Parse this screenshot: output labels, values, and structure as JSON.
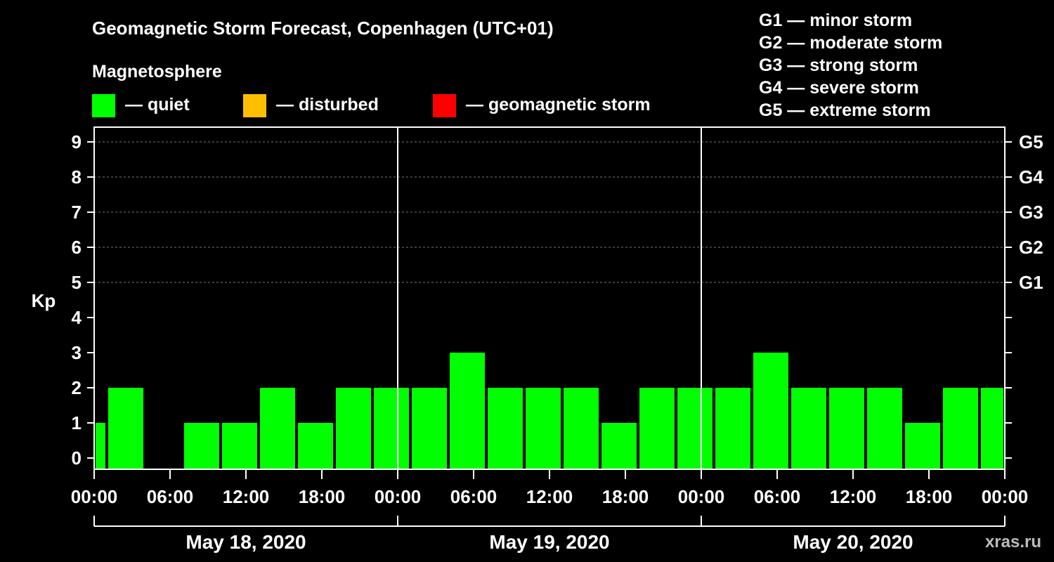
{
  "header": {
    "title": "Geomagnetic Storm Forecast, Copenhagen (UTC+01)",
    "legend_title": "Magnetosphere",
    "legend": [
      {
        "label": "— quiet",
        "color": "#00ff00"
      },
      {
        "label": "— disturbed",
        "color": "#ffbf00"
      },
      {
        "label": "— geomagnetic storm",
        "color": "#ff0000"
      }
    ],
    "scale": [
      "G1 — minor storm",
      "G2 — moderate storm",
      "G3 — strong storm",
      "G4 — severe storm",
      "G5 — extreme storm"
    ]
  },
  "chart_data": {
    "type": "bar",
    "ylabel": "Kp",
    "ylim": [
      0,
      9
    ],
    "y_ticks": [
      "0",
      "1",
      "2",
      "3",
      "4",
      "5",
      "6",
      "7",
      "8",
      "9"
    ],
    "right_ticks": [
      {
        "kp": 5,
        "label": "G1"
      },
      {
        "kp": 6,
        "label": "G2"
      },
      {
        "kp": 7,
        "label": "G3"
      },
      {
        "kp": 8,
        "label": "G4"
      },
      {
        "kp": 9,
        "label": "G5"
      }
    ],
    "x_range_hours": [
      0,
      72
    ],
    "x_tick_labels": [
      "00:00",
      "06:00",
      "12:00",
      "18:00",
      "00:00",
      "06:00",
      "12:00",
      "18:00",
      "00:00",
      "06:00",
      "12:00",
      "18:00",
      "00:00"
    ],
    "dates": [
      "May 18, 2020",
      "May 19, 2020",
      "May 20, 2020"
    ],
    "grid": "dashed horizontal at Kp 5-9",
    "series": [
      {
        "values": [
          {
            "start": 0,
            "end": 1,
            "kp": 1
          },
          {
            "start": 1,
            "end": 4,
            "kp": 2
          },
          {
            "start": 4,
            "end": 7,
            "kp": 0
          },
          {
            "start": 7,
            "end": 10,
            "kp": 1
          },
          {
            "start": 10,
            "end": 13,
            "kp": 1
          },
          {
            "start": 13,
            "end": 16,
            "kp": 2
          },
          {
            "start": 16,
            "end": 19,
            "kp": 1
          },
          {
            "start": 19,
            "end": 22,
            "kp": 2
          },
          {
            "start": 22,
            "end": 25,
            "kp": 2
          },
          {
            "start": 25,
            "end": 28,
            "kp": 2
          },
          {
            "start": 28,
            "end": 31,
            "kp": 3
          },
          {
            "start": 31,
            "end": 34,
            "kp": 2
          },
          {
            "start": 34,
            "end": 37,
            "kp": 2
          },
          {
            "start": 37,
            "end": 40,
            "kp": 2
          },
          {
            "start": 40,
            "end": 43,
            "kp": 1
          },
          {
            "start": 43,
            "end": 46,
            "kp": 2
          },
          {
            "start": 46,
            "end": 49,
            "kp": 2
          },
          {
            "start": 49,
            "end": 52,
            "kp": 2
          },
          {
            "start": 52,
            "end": 55,
            "kp": 3
          },
          {
            "start": 55,
            "end": 58,
            "kp": 2
          },
          {
            "start": 58,
            "end": 61,
            "kp": 2
          },
          {
            "start": 61,
            "end": 64,
            "kp": 2
          },
          {
            "start": 64,
            "end": 67,
            "kp": 1
          },
          {
            "start": 67,
            "end": 70,
            "kp": 2
          },
          {
            "start": 70,
            "end": 72,
            "kp": 2
          }
        ]
      }
    ]
  },
  "watermark": "xras.ru"
}
